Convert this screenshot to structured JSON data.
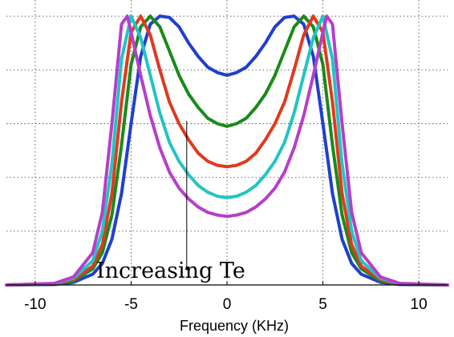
{
  "chart_data": {
    "type": "line",
    "title": "",
    "xlabel": "Frequency (KHz)",
    "ylabel": "",
    "xlim": [
      -11.5,
      11.5
    ],
    "ylim": [
      0,
      1.06
    ],
    "xticks": [
      -10,
      -5,
      0,
      5,
      10
    ],
    "xtick_labels": [
      "-10",
      "-5",
      "0",
      "5",
      "10"
    ],
    "yticks": [
      0,
      0.2,
      0.4,
      0.6,
      0.8,
      1.0
    ],
    "grid": true,
    "legend": "none",
    "annotation": {
      "text": "Increasing Te",
      "arrow_from": [
        -2.1,
        0.06
      ],
      "arrow_to": [
        -2.1,
        0.61
      ]
    },
    "series": [
      {
        "color": "#1f3fd0",
        "x": [
          -11.5,
          -9,
          -8,
          -7,
          -6.5,
          -6,
          -5.5,
          -5,
          -4.5,
          -4,
          -3.5,
          -3,
          -2.5,
          -2,
          -1.5,
          -1,
          -0.5,
          0,
          0.5,
          1,
          1.5,
          2,
          2.5,
          3,
          3.5,
          4,
          4.5,
          5,
          5.5,
          6,
          6.5,
          7,
          8,
          9,
          11.5
        ],
        "y": [
          0,
          0.002,
          0.01,
          0.04,
          0.08,
          0.17,
          0.34,
          0.6,
          0.85,
          0.97,
          1.0,
          0.995,
          0.96,
          0.9,
          0.85,
          0.81,
          0.79,
          0.78,
          0.79,
          0.81,
          0.85,
          0.9,
          0.96,
          0.995,
          1.0,
          0.97,
          0.85,
          0.6,
          0.34,
          0.17,
          0.08,
          0.04,
          0.01,
          0.002,
          0
        ]
      },
      {
        "color": "#1a8a1a",
        "x": [
          -11.5,
          -9,
          -8,
          -7,
          -6.5,
          -6,
          -5.5,
          -5,
          -4.5,
          -4,
          -3.5,
          -3,
          -2.5,
          -2,
          -1.5,
          -1,
          -0.5,
          0,
          0.5,
          1,
          1.5,
          2,
          2.5,
          3,
          3.5,
          4,
          4.5,
          5,
          5.5,
          6,
          6.5,
          7,
          8,
          9,
          11.5
        ],
        "y": [
          0,
          0.003,
          0.015,
          0.06,
          0.12,
          0.26,
          0.52,
          0.82,
          0.96,
          1.0,
          0.96,
          0.87,
          0.78,
          0.71,
          0.66,
          0.62,
          0.6,
          0.59,
          0.6,
          0.62,
          0.66,
          0.71,
          0.78,
          0.87,
          0.96,
          1.0,
          0.96,
          0.82,
          0.52,
          0.26,
          0.12,
          0.06,
          0.015,
          0.003,
          0
        ]
      },
      {
        "color": "#e03a1e",
        "x": [
          -11.5,
          -9,
          -8,
          -7,
          -6.5,
          -6,
          -5.5,
          -5,
          -4.5,
          -4,
          -3.5,
          -3,
          -2.5,
          -2,
          -1.5,
          -1,
          -0.5,
          0,
          0.5,
          1,
          1.5,
          2,
          2.5,
          3,
          3.5,
          4,
          4.5,
          5,
          5.5,
          6,
          6.5,
          7,
          8,
          9,
          11.5
        ],
        "y": [
          0,
          0.004,
          0.02,
          0.07,
          0.15,
          0.34,
          0.68,
          0.94,
          1.0,
          0.93,
          0.8,
          0.68,
          0.6,
          0.54,
          0.49,
          0.46,
          0.445,
          0.44,
          0.445,
          0.46,
          0.49,
          0.54,
          0.6,
          0.68,
          0.8,
          0.93,
          1.0,
          0.94,
          0.68,
          0.34,
          0.15,
          0.07,
          0.02,
          0.004,
          0
        ]
      },
      {
        "color": "#22c4c4",
        "x": [
          -11.5,
          -9,
          -8,
          -7,
          -6.5,
          -6,
          -5.5,
          -5,
          -4.5,
          -4,
          -3.5,
          -3,
          -2.5,
          -2,
          -1.5,
          -1,
          -0.5,
          0,
          0.5,
          1,
          1.5,
          2,
          2.5,
          3,
          3.5,
          4,
          4.5,
          5,
          5.5,
          6,
          6.5,
          7,
          8,
          9,
          11.5
        ],
        "y": [
          0,
          0.005,
          0.025,
          0.09,
          0.2,
          0.45,
          0.84,
          1.0,
          0.92,
          0.78,
          0.64,
          0.53,
          0.46,
          0.41,
          0.37,
          0.345,
          0.33,
          0.325,
          0.33,
          0.345,
          0.37,
          0.41,
          0.46,
          0.53,
          0.64,
          0.78,
          0.92,
          1.0,
          0.84,
          0.45,
          0.2,
          0.09,
          0.025,
          0.005,
          0
        ]
      },
      {
        "color": "#b53fc9",
        "x": [
          -11.5,
          -9,
          -8,
          -7,
          -6.5,
          -6,
          -5.5,
          -5.2,
          -5,
          -4.5,
          -4,
          -3.5,
          -3,
          -2.5,
          -2,
          -1.5,
          -1,
          -0.5,
          0,
          0.5,
          1,
          1.5,
          2,
          2.5,
          3,
          3.5,
          4,
          4.5,
          5,
          5.2,
          5.5,
          6,
          6.5,
          7,
          8,
          9,
          11.5
        ],
        "y": [
          0,
          0.006,
          0.03,
          0.12,
          0.27,
          0.6,
          0.97,
          1.0,
          0.94,
          0.78,
          0.63,
          0.51,
          0.42,
          0.36,
          0.32,
          0.29,
          0.27,
          0.26,
          0.255,
          0.26,
          0.27,
          0.29,
          0.32,
          0.36,
          0.42,
          0.51,
          0.63,
          0.78,
          0.94,
          1.0,
          0.97,
          0.6,
          0.27,
          0.12,
          0.03,
          0.006,
          0
        ]
      }
    ]
  }
}
